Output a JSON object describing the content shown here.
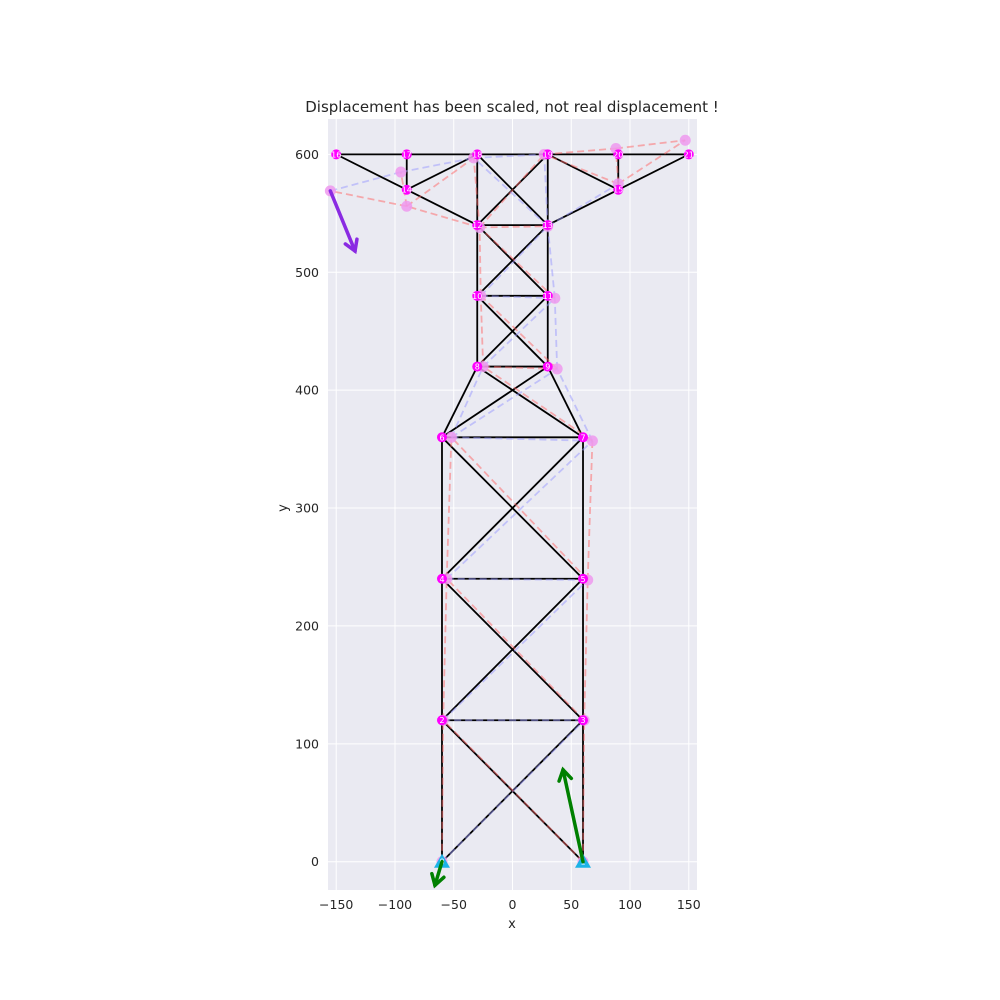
{
  "chart_data": {
    "type": "scatter",
    "title": "Displacement has been scaled, not real displacement !",
    "xlabel": "x",
    "ylabel": "y",
    "xlim": [
      -157,
      157
    ],
    "ylim": [
      -24,
      630
    ],
    "xticks": [
      -150,
      -100,
      -50,
      0,
      50,
      100,
      150
    ],
    "yticks": [
      0,
      100,
      200,
      300,
      400,
      500,
      600
    ],
    "grid": true,
    "background": "#eaeaf2",
    "colors": {
      "structure": "#000000",
      "tension_member": "#ff6666",
      "compression_member": "#9999ff",
      "node": "#ff00ff",
      "displaced_node": "#ee99ee",
      "support": "#1cb3e6",
      "reaction_force": "#008000",
      "applied_load": "#8a2be2"
    },
    "nodes": [
      {
        "id": "0",
        "x": -60,
        "y": 0
      },
      {
        "id": "1",
        "x": 60,
        "y": 0
      },
      {
        "id": "2",
        "x": -60,
        "y": 120
      },
      {
        "id": "3",
        "x": 60,
        "y": 120
      },
      {
        "id": "4",
        "x": -60,
        "y": 240
      },
      {
        "id": "5",
        "x": 60,
        "y": 240
      },
      {
        "id": "6",
        "x": -60,
        "y": 360
      },
      {
        "id": "7",
        "x": 60,
        "y": 360
      },
      {
        "id": "8",
        "x": -30,
        "y": 420
      },
      {
        "id": "9",
        "x": 30,
        "y": 420
      },
      {
        "id": "10",
        "x": -30,
        "y": 480
      },
      {
        "id": "11",
        "x": 30,
        "y": 480
      },
      {
        "id": "12",
        "x": -30,
        "y": 540
      },
      {
        "id": "13",
        "x": 30,
        "y": 540
      },
      {
        "id": "14",
        "x": -90,
        "y": 570
      },
      {
        "id": "15",
        "x": 90,
        "y": 570
      },
      {
        "id": "16",
        "x": -150,
        "y": 600
      },
      {
        "id": "17",
        "x": -90,
        "y": 600
      },
      {
        "id": "18",
        "x": -30,
        "y": 600
      },
      {
        "id": "19",
        "x": 30,
        "y": 600
      },
      {
        "id": "20",
        "x": 90,
        "y": 600
      },
      {
        "id": "21",
        "x": 150,
        "y": 600
      }
    ],
    "displaced_nodes": [
      {
        "id": "0",
        "x": -60,
        "y": 0
      },
      {
        "id": "1",
        "x": 60,
        "y": 0
      },
      {
        "id": "2",
        "x": -59,
        "y": 120
      },
      {
        "id": "3",
        "x": 61,
        "y": 120
      },
      {
        "id": "4",
        "x": -56,
        "y": 240
      },
      {
        "id": "5",
        "x": 64,
        "y": 239
      },
      {
        "id": "6",
        "x": -52,
        "y": 360
      },
      {
        "id": "7",
        "x": 68,
        "y": 357
      },
      {
        "id": "8",
        "x": -25,
        "y": 420
      },
      {
        "id": "9",
        "x": 38,
        "y": 418
      },
      {
        "id": "10",
        "x": -27,
        "y": 480
      },
      {
        "id": "11",
        "x": 36,
        "y": 478
      },
      {
        "id": "12",
        "x": -28,
        "y": 538
      },
      {
        "id": "13",
        "x": 30,
        "y": 539
      },
      {
        "id": "14",
        "x": -90,
        "y": 556
      },
      {
        "id": "15",
        "x": 90,
        "y": 575
      },
      {
        "id": "16",
        "x": -155,
        "y": 569
      },
      {
        "id": "17",
        "x": -95,
        "y": 585
      },
      {
        "id": "18",
        "x": -33,
        "y": 597
      },
      {
        "id": "19",
        "x": 27,
        "y": 600
      },
      {
        "id": "20",
        "x": 88,
        "y": 605
      },
      {
        "id": "21",
        "x": 147,
        "y": 612
      }
    ],
    "members": [
      {
        "from": "0",
        "to": "2",
        "force": "tension"
      },
      {
        "from": "1",
        "to": "3",
        "force": "tension"
      },
      {
        "from": "0",
        "to": "3",
        "force": "compression"
      },
      {
        "from": "1",
        "to": "2",
        "force": "tension"
      },
      {
        "from": "2",
        "to": "3",
        "force": "compression"
      },
      {
        "from": "2",
        "to": "4",
        "force": "tension"
      },
      {
        "from": "3",
        "to": "5",
        "force": "tension"
      },
      {
        "from": "2",
        "to": "5",
        "force": "compression"
      },
      {
        "from": "3",
        "to": "4",
        "force": "tension"
      },
      {
        "from": "4",
        "to": "5",
        "force": "compression"
      },
      {
        "from": "4",
        "to": "6",
        "force": "tension"
      },
      {
        "from": "5",
        "to": "7",
        "force": "tension"
      },
      {
        "from": "4",
        "to": "7",
        "force": "compression"
      },
      {
        "from": "5",
        "to": "6",
        "force": "tension"
      },
      {
        "from": "6",
        "to": "7",
        "force": "compression"
      },
      {
        "from": "6",
        "to": "8",
        "force": "compression"
      },
      {
        "from": "7",
        "to": "9",
        "force": "compression"
      },
      {
        "from": "6",
        "to": "9",
        "force": "compression"
      },
      {
        "from": "7",
        "to": "8",
        "force": "tension"
      },
      {
        "from": "8",
        "to": "9",
        "force": "tension"
      },
      {
        "from": "8",
        "to": "10",
        "force": "tension"
      },
      {
        "from": "9",
        "to": "11",
        "force": "compression"
      },
      {
        "from": "8",
        "to": "11",
        "force": "compression"
      },
      {
        "from": "9",
        "to": "10",
        "force": "tension"
      },
      {
        "from": "10",
        "to": "11",
        "force": "compression"
      },
      {
        "from": "10",
        "to": "12",
        "force": "tension"
      },
      {
        "from": "11",
        "to": "13",
        "force": "compression"
      },
      {
        "from": "10",
        "to": "13",
        "force": "compression"
      },
      {
        "from": "11",
        "to": "12",
        "force": "tension"
      },
      {
        "from": "12",
        "to": "13",
        "force": "tension"
      },
      {
        "from": "12",
        "to": "18",
        "force": "tension"
      },
      {
        "from": "13",
        "to": "19",
        "force": "compression"
      },
      {
        "from": "12",
        "to": "19",
        "force": "tension"
      },
      {
        "from": "13",
        "to": "18",
        "force": "compression"
      },
      {
        "from": "12",
        "to": "14",
        "force": "tension"
      },
      {
        "from": "13",
        "to": "15",
        "force": "compression"
      },
      {
        "from": "14",
        "to": "16",
        "force": "tension"
      },
      {
        "from": "14",
        "to": "17",
        "force": "tension"
      },
      {
        "from": "14",
        "to": "18",
        "force": "tension"
      },
      {
        "from": "15",
        "to": "20",
        "force": "tension"
      },
      {
        "from": "15",
        "to": "21",
        "force": "tension"
      },
      {
        "from": "15",
        "to": "19",
        "force": "tension"
      },
      {
        "from": "16",
        "to": "17",
        "force": "compression"
      },
      {
        "from": "17",
        "to": "18",
        "force": "compression"
      },
      {
        "from": "18",
        "to": "19",
        "force": "compression"
      },
      {
        "from": "19",
        "to": "20",
        "force": "tension"
      },
      {
        "from": "20",
        "to": "21",
        "force": "tension"
      }
    ],
    "supports": [
      "0",
      "1"
    ],
    "arrows": [
      {
        "kind": "reaction_force",
        "x0": 60,
        "y0": 0,
        "x1": 43,
        "y1": 78
      },
      {
        "kind": "reaction_force",
        "x0": -60,
        "y0": 0,
        "x1": -66,
        "y1": -20
      },
      {
        "kind": "applied_load",
        "x0": -155,
        "y0": 569,
        "x1": -134,
        "y1": 518
      }
    ]
  }
}
